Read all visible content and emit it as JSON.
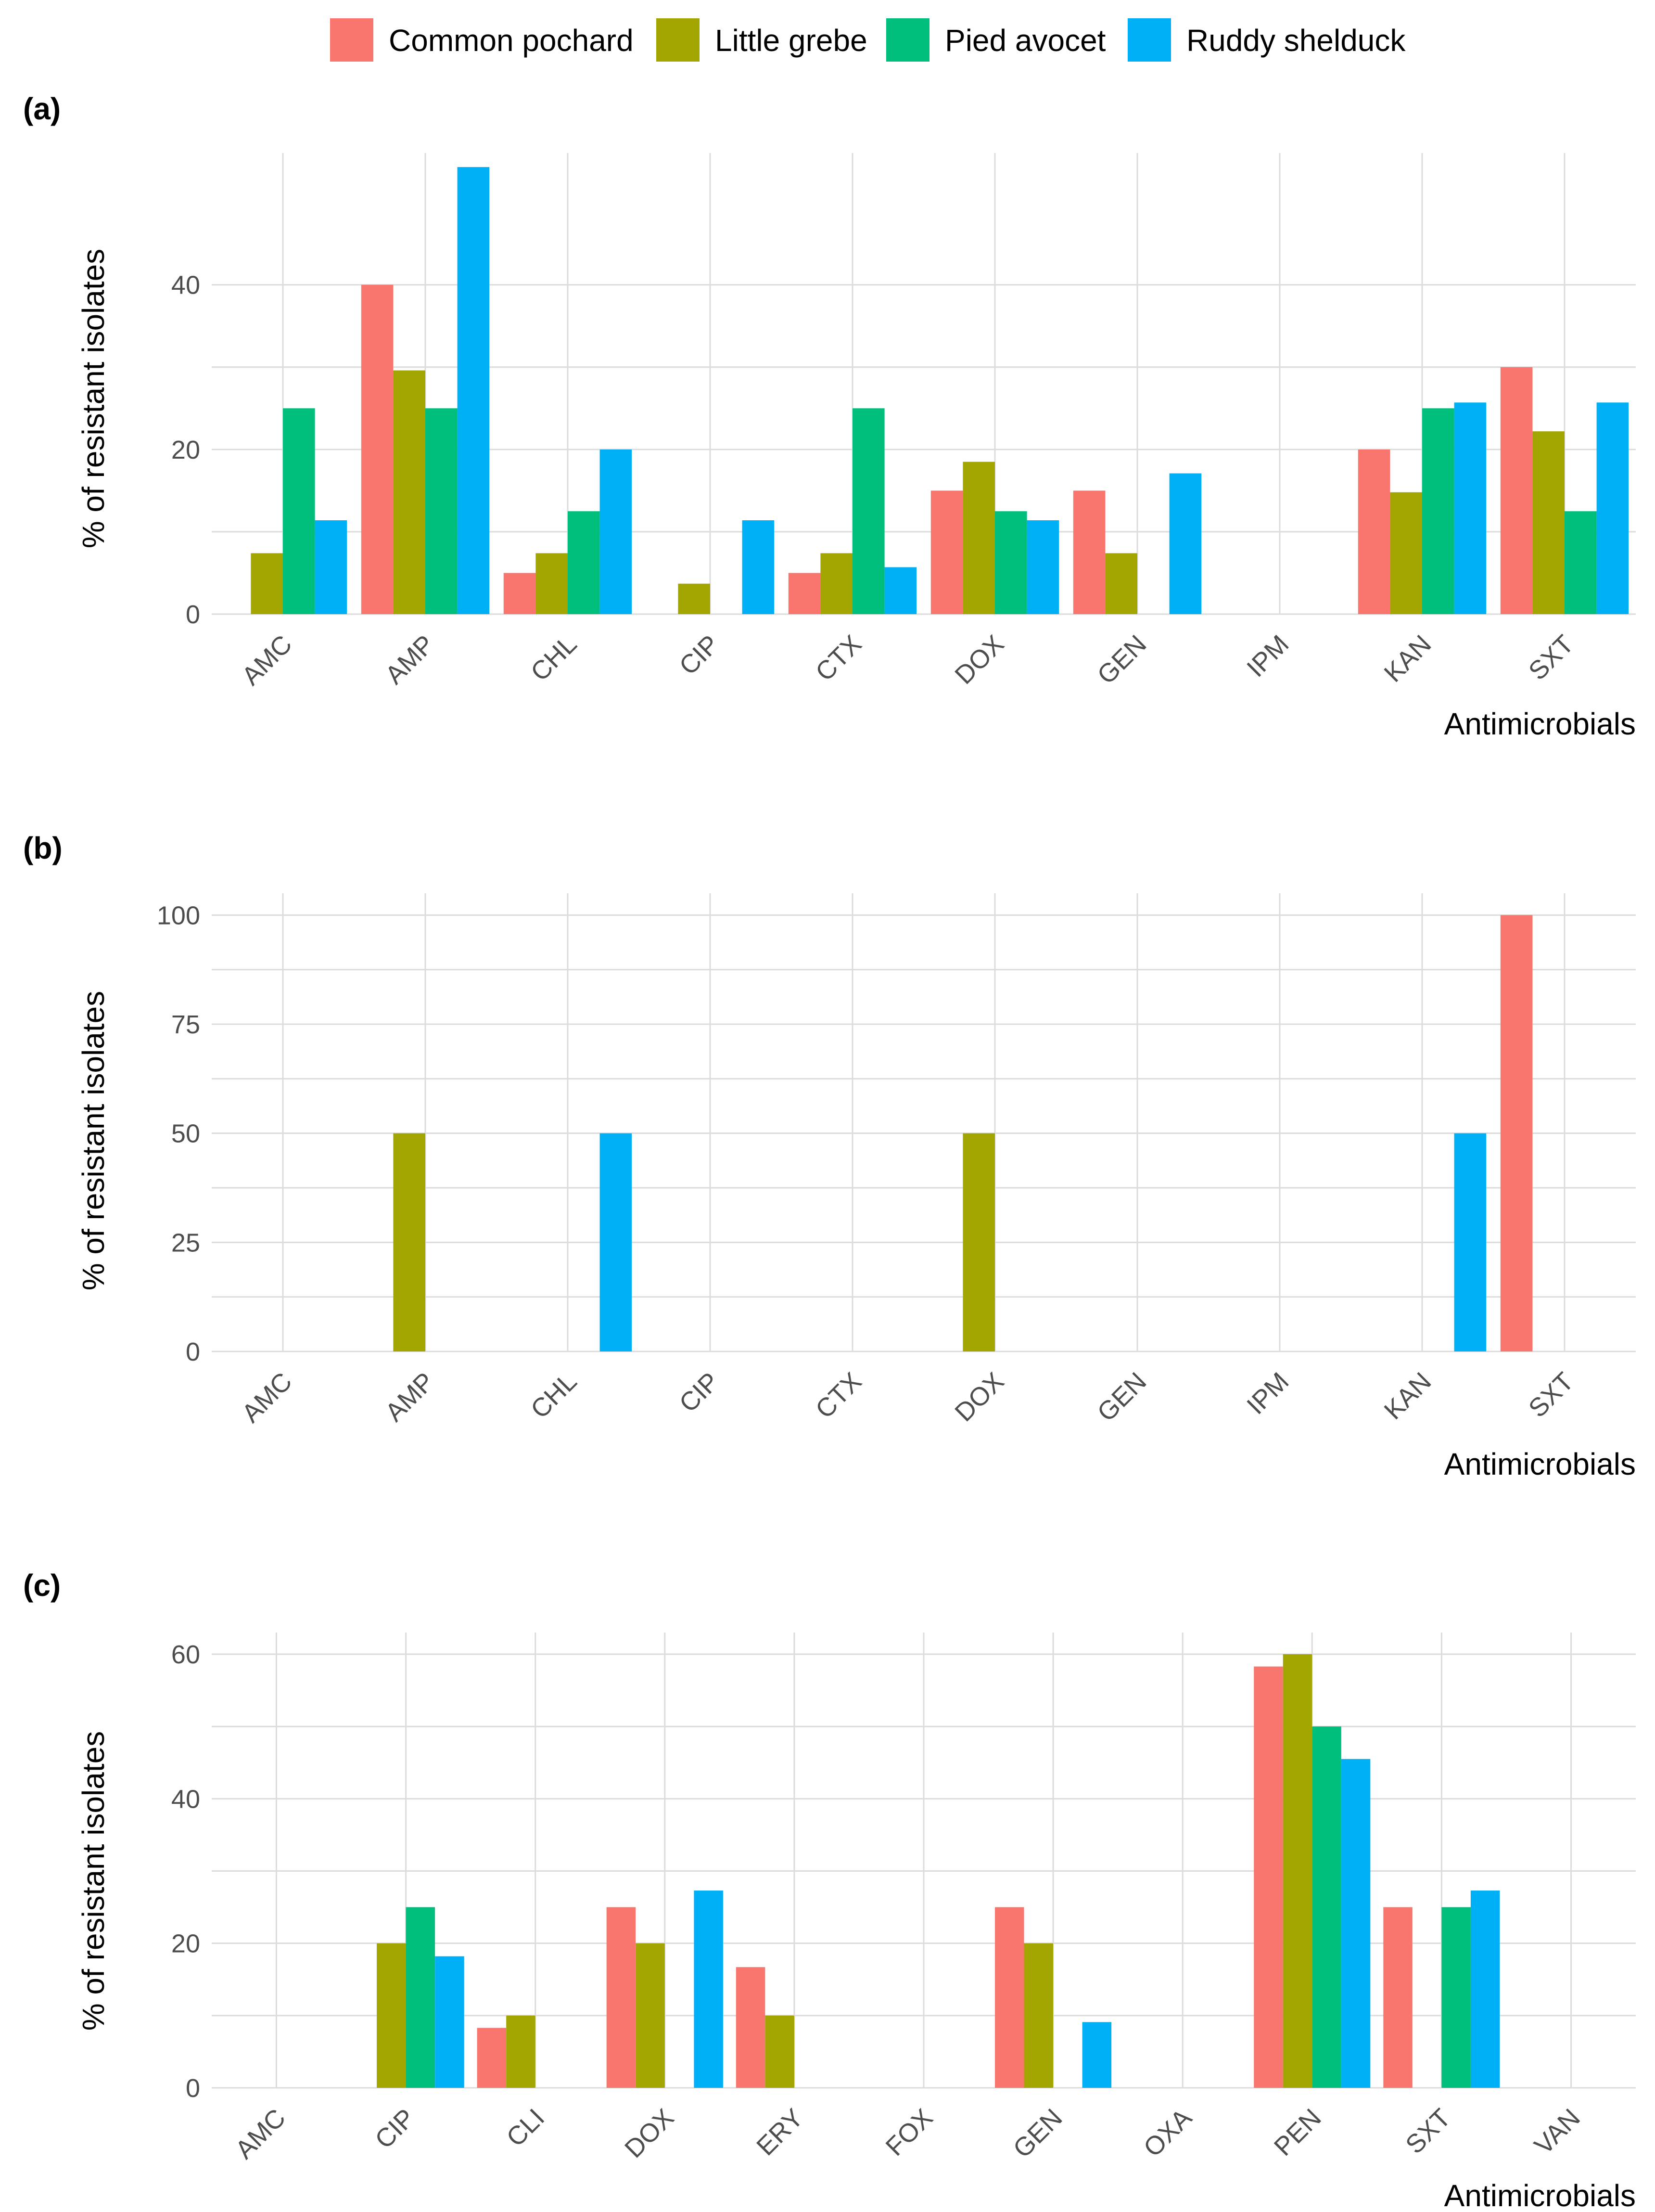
{
  "legend": {
    "items": [
      {
        "label": "Common pochard",
        "color": "#F8766D"
      },
      {
        "label": "Little grebe",
        "color": "#A3A500"
      },
      {
        "label": "Pied avocet",
        "color": "#00BF7D"
      },
      {
        "label": "Ruddy shelduck",
        "color": "#00B0F6"
      }
    ]
  },
  "chart_data": [
    {
      "type": "bar",
      "panel_label": "(a)",
      "xlabel": "Antimicrobials",
      "ylabel": "% of resistant isolates",
      "ylim": [
        0,
        56
      ],
      "yticks": [
        0,
        20,
        40
      ],
      "categories": [
        "AMC",
        "AMP",
        "CHL",
        "CIP",
        "CTX",
        "DOX",
        "GEN",
        "IPM",
        "KAN",
        "SXT"
      ],
      "series": [
        {
          "name": "Common pochard",
          "values": [
            0,
            40,
            5,
            0,
            5,
            15,
            15,
            0,
            20,
            30
          ]
        },
        {
          "name": "Little grebe",
          "values": [
            7.4,
            29.6,
            7.4,
            3.7,
            7.4,
            18.5,
            7.4,
            0,
            14.8,
            22.2
          ]
        },
        {
          "name": "Pied avocet",
          "values": [
            25,
            25,
            12.5,
            0,
            25,
            12.5,
            0,
            0,
            25,
            12.5
          ]
        },
        {
          "name": "Ruddy shelduck",
          "values": [
            11.4,
            54.3,
            20,
            11.4,
            5.7,
            11.4,
            17.1,
            0,
            25.7,
            25.7
          ]
        }
      ]
    },
    {
      "type": "bar",
      "panel_label": "(b)",
      "xlabel": "Antimicrobials",
      "ylabel": "% of resistant isolates",
      "ylim": [
        0,
        105
      ],
      "yticks": [
        0,
        25,
        50,
        75,
        100
      ],
      "categories": [
        "AMC",
        "AMP",
        "CHL",
        "CIP",
        "CTX",
        "DOX",
        "GEN",
        "IPM",
        "KAN",
        "SXT"
      ],
      "series": [
        {
          "name": "Common pochard",
          "values": [
            0,
            0,
            0,
            0,
            0,
            0,
            0,
            0,
            0,
            100
          ]
        },
        {
          "name": "Little grebe",
          "values": [
            0,
            50,
            0,
            0,
            0,
            50,
            0,
            0,
            0,
            0
          ]
        },
        {
          "name": "Pied avocet",
          "values": [
            0,
            0,
            0,
            0,
            0,
            0,
            0,
            0,
            0,
            0
          ]
        },
        {
          "name": "Ruddy shelduck",
          "values": [
            0,
            0,
            50,
            0,
            0,
            0,
            0,
            0,
            50,
            0
          ]
        }
      ]
    },
    {
      "type": "bar",
      "panel_label": "(c)",
      "xlabel": "Antimicrobials",
      "ylabel": "% of resistant isolates",
      "ylim": [
        0,
        63
      ],
      "yticks": [
        0,
        20,
        40,
        60
      ],
      "categories": [
        "AMC",
        "CIP",
        "CLI",
        "DOX",
        "ERY",
        "FOX",
        "GEN",
        "OXA",
        "PEN",
        "SXT",
        "VAN"
      ],
      "series": [
        {
          "name": "Common pochard",
          "values": [
            0,
            0,
            8.3,
            25,
            16.7,
            0,
            25,
            0,
            58.3,
            25,
            0
          ]
        },
        {
          "name": "Little grebe",
          "values": [
            0,
            20,
            10,
            20,
            10,
            0,
            20,
            0,
            60,
            0,
            0
          ]
        },
        {
          "name": "Pied avocet",
          "values": [
            0,
            25,
            0,
            0,
            0,
            0,
            0,
            0,
            50,
            25,
            0
          ]
        },
        {
          "name": "Ruddy shelduck",
          "values": [
            0,
            18.2,
            0,
            27.3,
            0,
            0,
            9.1,
            0,
            45.5,
            27.3,
            0
          ]
        }
      ]
    }
  ]
}
